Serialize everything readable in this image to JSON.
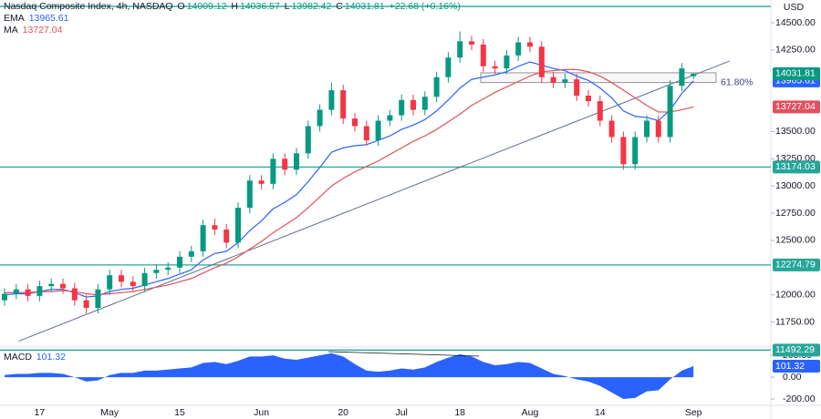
{
  "chart_data": {
    "type": "candlestick",
    "header": {
      "symbol": "Nasdaq Composite Index, 4h, NASDAQ",
      "ohlc_keys": [
        "O",
        "H",
        "L",
        "C"
      ],
      "change": "+22.68 (+0.16%)"
    },
    "y_unit": "USD",
    "categories": [
      null,
      null,
      null,
      "17",
      null,
      null,
      null,
      null,
      null,
      "May",
      null,
      null,
      null,
      null,
      null,
      "15",
      null,
      null,
      null,
      null,
      null,
      null,
      "Jun",
      null,
      null,
      null,
      null,
      null,
      null,
      "20",
      null,
      null,
      null,
      null,
      "Jul",
      null,
      null,
      null,
      null,
      "18",
      null,
      null,
      null,
      null,
      null,
      "Aug",
      null,
      null,
      null,
      null,
      null,
      "14",
      null,
      null,
      null,
      null,
      null,
      null,
      null,
      "Sep"
    ],
    "candles": {
      "up_color": "#089981",
      "down_color": "#f23645",
      "open": [
        11950,
        12010,
        12050,
        11990,
        12080,
        12100,
        12060,
        11950,
        11880,
        12050,
        12180,
        12120,
        12080,
        12200,
        12230,
        12250,
        12350,
        12400,
        12640,
        12600,
        12480,
        12800,
        13050,
        13020,
        13250,
        13150,
        13300,
        13550,
        13700,
        13880,
        13620,
        13550,
        13420,
        13600,
        13650,
        13790,
        13700,
        13820,
        14000,
        14180,
        14330,
        14300,
        14100,
        14080,
        14200,
        14320,
        14280,
        14000,
        13950,
        13980,
        13830,
        13780,
        13600,
        13450,
        13200,
        13450,
        13600,
        13450,
        13920,
        14009.12
      ],
      "high": [
        12060,
        12100,
        12100,
        12130,
        12150,
        12150,
        12110,
        12000,
        12100,
        12230,
        12230,
        12170,
        12250,
        12280,
        12300,
        12400,
        12450,
        12690,
        12700,
        12650,
        12850,
        13100,
        13100,
        13300,
        13300,
        13350,
        13600,
        13750,
        13950,
        13930,
        13670,
        13600,
        13650,
        13700,
        13840,
        13840,
        13870,
        14050,
        14230,
        14420,
        14380,
        14350,
        14150,
        14250,
        14370,
        14370,
        14330,
        14050,
        14030,
        14030,
        13880,
        13830,
        13650,
        13500,
        13500,
        13650,
        13650,
        13970,
        14130,
        14036.57
      ],
      "low": [
        11900,
        11960,
        11940,
        11940,
        12030,
        12010,
        11900,
        11830,
        11830,
        12000,
        12070,
        12030,
        12030,
        12150,
        12180,
        12200,
        12300,
        12350,
        12550,
        12430,
        12430,
        12750,
        12970,
        12970,
        13100,
        13100,
        13250,
        13500,
        13650,
        13570,
        13500,
        13370,
        13370,
        13550,
        13600,
        13650,
        13650,
        13770,
        13950,
        14130,
        14250,
        14050,
        14030,
        14030,
        14150,
        14230,
        13950,
        13900,
        13900,
        13780,
        13730,
        13550,
        13400,
        13150,
        13150,
        13400,
        13400,
        13400,
        13870,
        13982.42
      ],
      "close": [
        12010,
        12050,
        11990,
        12080,
        12100,
        12060,
        11950,
        11880,
        12050,
        12180,
        12120,
        12080,
        12200,
        12230,
        12250,
        12350,
        12400,
        12640,
        12600,
        12480,
        12800,
        13050,
        13020,
        13250,
        13150,
        13300,
        13550,
        13700,
        13880,
        13620,
        13550,
        13420,
        13600,
        13650,
        13790,
        13700,
        13820,
        14000,
        14180,
        14330,
        14300,
        14100,
        14080,
        14200,
        14320,
        14280,
        14000,
        13950,
        13980,
        13830,
        13780,
        13600,
        13450,
        13200,
        13450,
        13600,
        13450,
        13920,
        14080,
        14031.81
      ]
    },
    "series": [
      {
        "name": "EMA",
        "color": "#2962ff",
        "values": [
          12000,
          12010,
          12010,
          12030,
          12050,
          12050,
          12020,
          11980,
          11990,
          12030,
          12050,
          12060,
          12090,
          12120,
          12150,
          12190,
          12230,
          12320,
          12380,
          12400,
          12480,
          12590,
          12680,
          12790,
          12850,
          12920,
          13040,
          13170,
          13310,
          13350,
          13370,
          13380,
          13420,
          13460,
          13520,
          13560,
          13610,
          13690,
          13790,
          13900,
          13980,
          14000,
          14020,
          14050,
          14100,
          14140,
          14110,
          14080,
          14060,
          14010,
          13970,
          13900,
          13810,
          13690,
          13640,
          13630,
          13600,
          13700,
          13850,
          13965.61
        ]
      },
      {
        "name": "MA",
        "color": "#e0515e",
        "values": [
          12020,
          12020,
          12020,
          12030,
          12030,
          12040,
          12030,
          12010,
          12000,
          12010,
          12020,
          12030,
          12050,
          12070,
          12090,
          12120,
          12150,
          12200,
          12250,
          12290,
          12350,
          12420,
          12490,
          12570,
          12640,
          12710,
          12800,
          12900,
          13000,
          13070,
          13130,
          13180,
          13230,
          13290,
          13350,
          13410,
          13460,
          13520,
          13590,
          13660,
          13740,
          13800,
          13860,
          13910,
          13960,
          14010,
          14050,
          14060,
          14070,
          14070,
          14050,
          14010,
          13950,
          13880,
          13810,
          13740,
          13680,
          13680,
          13700,
          13727.04
        ]
      }
    ],
    "ylim": [
      11470,
      14709
    ],
    "yticks": [
      {
        "value": 14500,
        "label": "14500.00"
      },
      {
        "value": 14250,
        "label": "14250.00"
      },
      {
        "value": 13500,
        "label": "13500.00"
      },
      {
        "value": 13250,
        "label": "13250.00"
      },
      {
        "value": 13000,
        "label": "13000.00"
      },
      {
        "value": 12750,
        "label": "12750.00"
      },
      {
        "value": 12500,
        "label": "12500.00"
      },
      {
        "value": 12000,
        "label": "12000.00"
      },
      {
        "value": 11750,
        "label": "11750.00"
      }
    ],
    "top_level": 14650,
    "levels": [
      13174.03,
      12274.79,
      11492.29
    ],
    "level_color": "#26a69a",
    "trendline": {
      "x": [
        1.2,
        62.1
      ],
      "y": [
        11574,
        14149
      ],
      "color": "#5d6d8a"
    },
    "fib": {
      "label": "61.80%",
      "top": 14040,
      "bottom": 13950
    },
    "macd": {
      "name": "MACD",
      "color": "#2962ff",
      "ylim": [
        -250,
        260
      ],
      "yticks": [
        {
          "value": 200,
          "label": "200.00"
        },
        {
          "value": 0,
          "label": "0.00"
        },
        {
          "value": -200,
          "label": "-200.00"
        }
      ],
      "values": [
        20,
        30,
        30,
        40,
        40,
        30,
        0,
        -40,
        -30,
        20,
        40,
        40,
        60,
        60,
        70,
        80,
        90,
        130,
        140,
        120,
        150,
        190,
        190,
        200,
        170,
        160,
        180,
        200,
        220,
        190,
        120,
        60,
        50,
        60,
        80,
        70,
        90,
        140,
        180,
        210,
        190,
        140,
        110,
        120,
        140,
        130,
        80,
        30,
        10,
        -20,
        -40,
        -80,
        -140,
        -200,
        -190,
        -130,
        -120,
        -20,
        60,
        101.32
      ]
    }
  }
}
